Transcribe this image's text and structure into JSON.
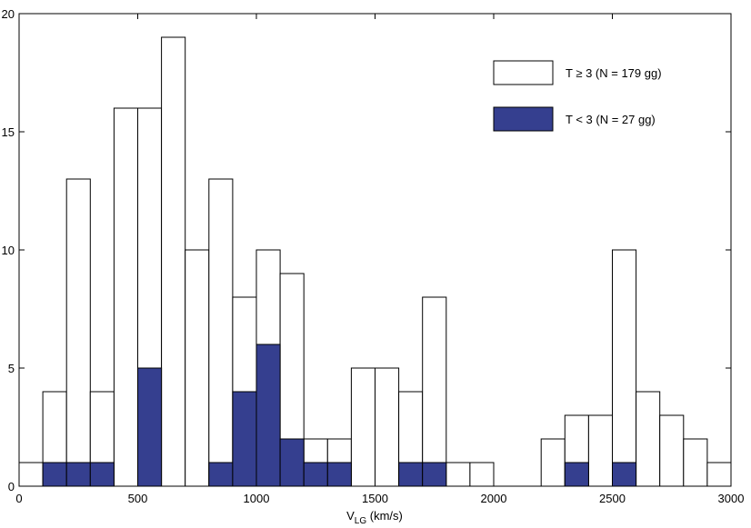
{
  "chart_data": {
    "type": "bar",
    "xlabel": "V",
    "xlabel_sub": "LG",
    "xlabel_unit": " (km/s)",
    "xlim": [
      0,
      3000
    ],
    "ylim": [
      0,
      20
    ],
    "xticks": [
      0,
      500,
      1000,
      1500,
      2000,
      2500,
      3000
    ],
    "yticks": [
      0,
      5,
      10,
      15,
      20
    ],
    "bin_width": 100,
    "legend_position": "top-right",
    "series": [
      {
        "name": "T ≥ 3 (N = 179 gg)",
        "color": "#ffffff",
        "bin_starts": [
          0,
          100,
          200,
          300,
          400,
          500,
          600,
          700,
          800,
          900,
          1000,
          1100,
          1200,
          1300,
          1400,
          1500,
          1600,
          1700,
          1800,
          1900,
          2200,
          2300,
          2400,
          2500,
          2600,
          2700,
          2800,
          2900
        ],
        "values": [
          1,
          4,
          13,
          4,
          16,
          16,
          19,
          10,
          13,
          8,
          10,
          9,
          2,
          2,
          5,
          5,
          4,
          8,
          1,
          1,
          2,
          3,
          3,
          10,
          4,
          3,
          2,
          1
        ]
      },
      {
        "name": "T < 3 (N = 27 gg)",
        "color": "#353f8f",
        "bin_starts": [
          100,
          200,
          300,
          500,
          800,
          900,
          1000,
          1100,
          1200,
          1300,
          1600,
          1700,
          2300,
          2500
        ],
        "values": [
          1,
          1,
          1,
          5,
          1,
          4,
          6,
          2,
          1,
          1,
          1,
          1,
          1,
          1
        ]
      }
    ]
  }
}
